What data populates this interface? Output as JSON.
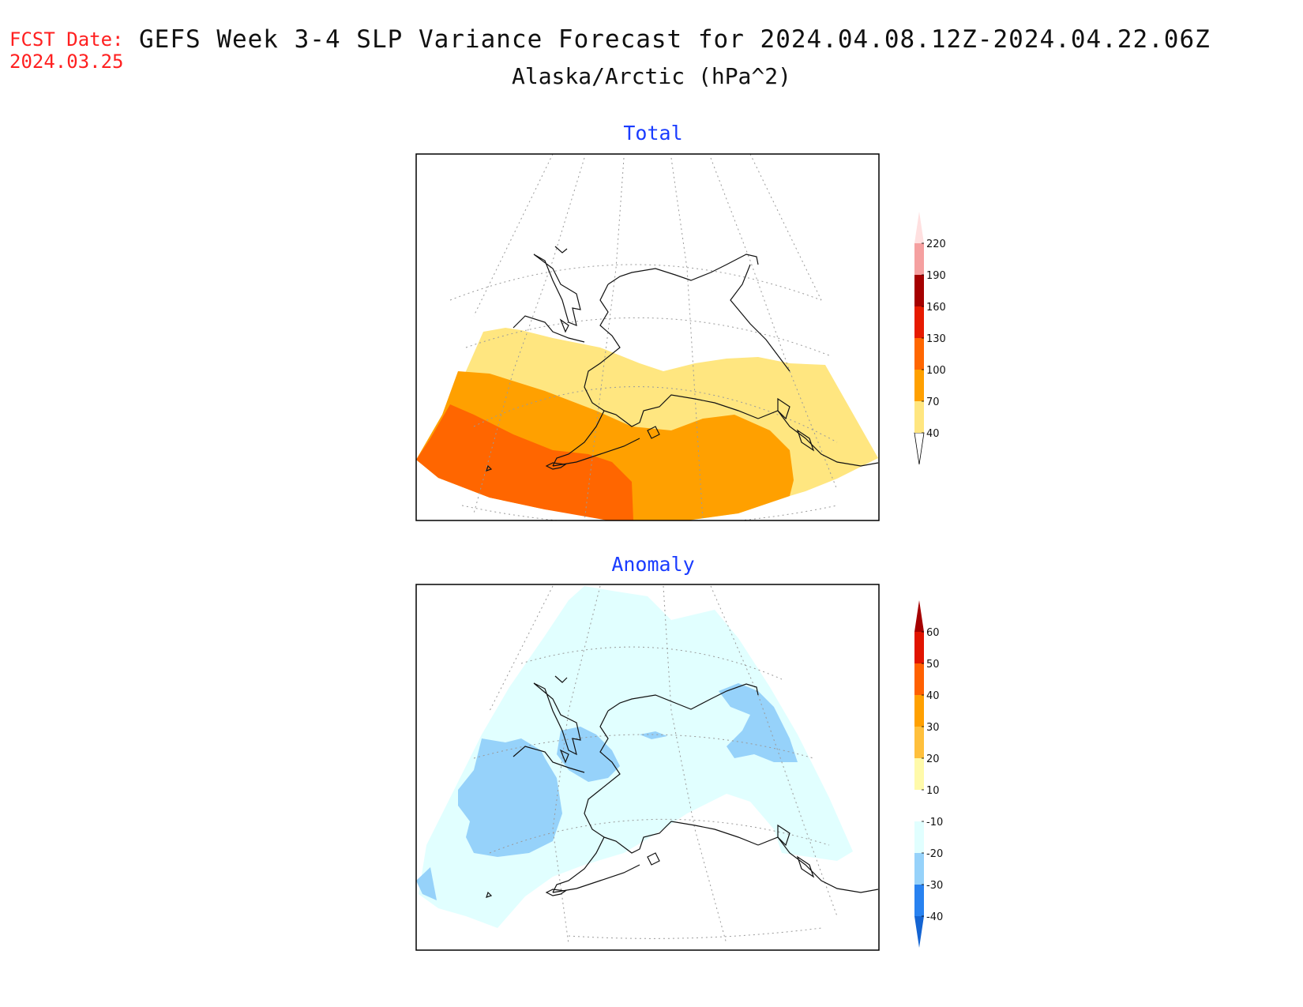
{
  "header": {
    "fcst_label": "FCST Date:",
    "fcst_date": "2024.03.25",
    "title": "GEFS Week 3-4 SLP Variance Forecast for 2024.04.08.12Z-2024.04.22.06Z",
    "subtitle": "Alaska/Arctic (hPa^2)"
  },
  "panels": {
    "total": {
      "title": "Total",
      "legend_labels": [
        "40",
        "70",
        "100",
        "130",
        "160",
        "190",
        "220"
      ],
      "colors": [
        "#ffe680",
        "#ffa000",
        "#ff6600",
        "#e61a00",
        "#a50000",
        "#f5a0a0",
        "#ffe0e0"
      ]
    },
    "anomaly": {
      "title": "Anomaly",
      "legend_labels": [
        "-40",
        "-30",
        "-20",
        "-10",
        "10",
        "20",
        "30",
        "40",
        "50",
        "60"
      ],
      "colors": [
        "#1464d2",
        "#2882f0",
        "#96d2fa",
        "#e1ffff",
        "#ffffff",
        "#fffaaa",
        "#ffc03c",
        "#ffa000",
        "#ff6000",
        "#e11400",
        "#a50000"
      ]
    }
  }
}
